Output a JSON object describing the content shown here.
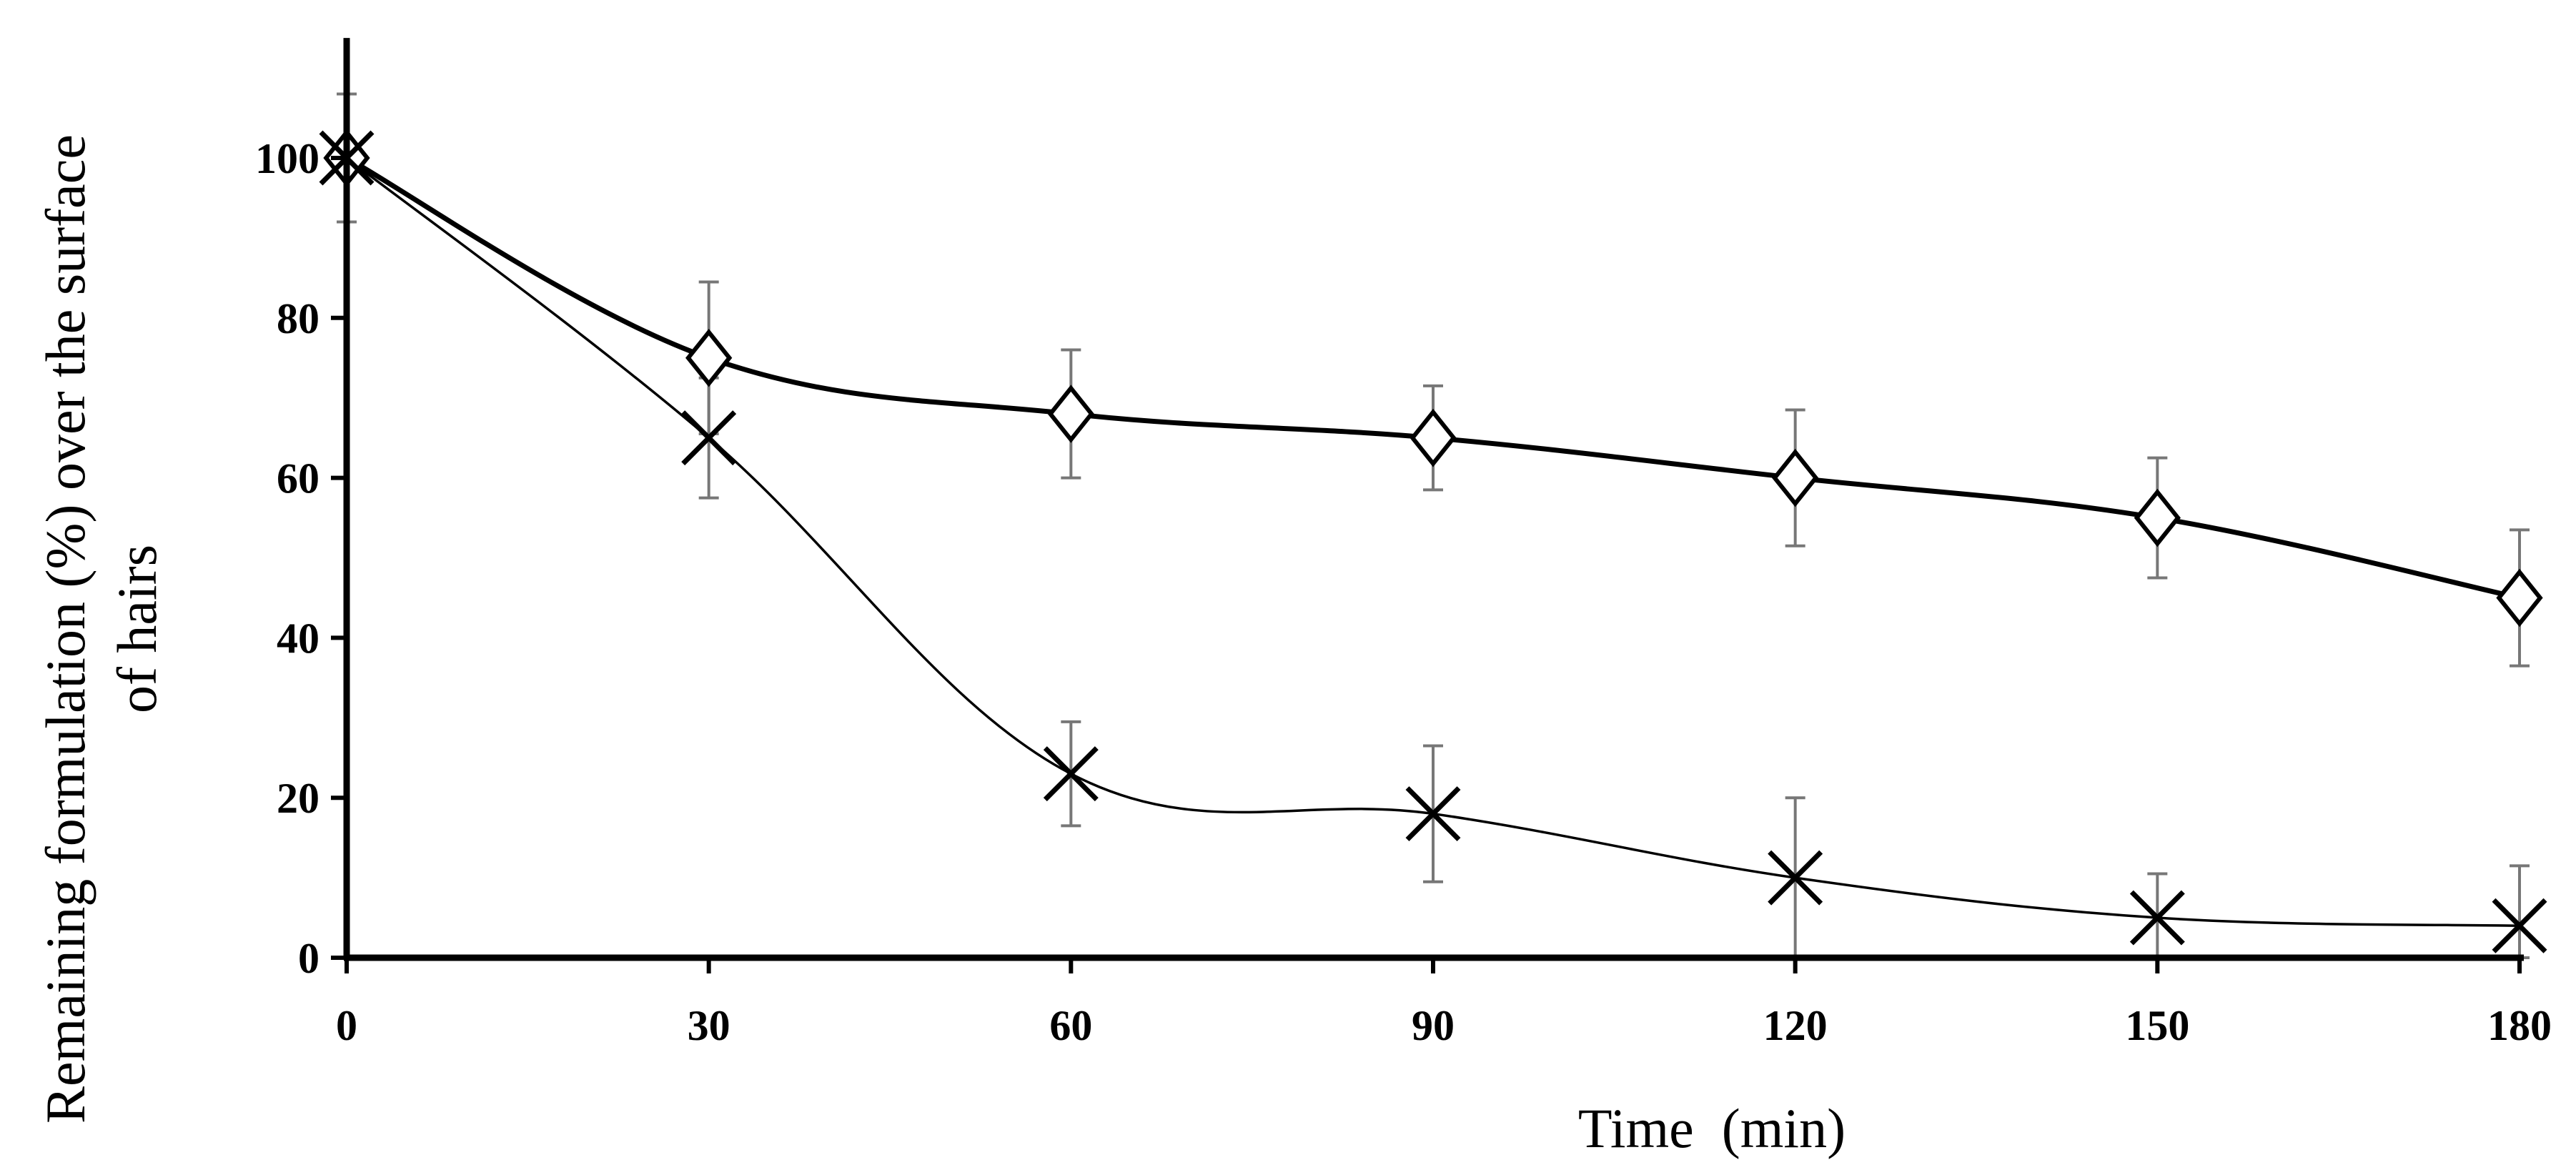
{
  "chart_data": {
    "type": "line",
    "title": "",
    "xlabel": "Time  (min)",
    "ylabel_line1": "Remaining formulation (%) over the surface",
    "ylabel_line2": "of hairs",
    "xlim": [
      0,
      180
    ],
    "ylim": [
      0,
      115
    ],
    "x_ticks": [
      0,
      30,
      60,
      90,
      120,
      150,
      180
    ],
    "y_ticks": [
      0,
      20,
      40,
      60,
      80,
      100
    ],
    "legend": "none",
    "series": [
      {
        "name": "diamond-series",
        "marker": "diamond",
        "x": [
          0,
          30,
          60,
          90,
          120,
          150,
          180
        ],
        "y": [
          100,
          75,
          68,
          65,
          60,
          55,
          45
        ],
        "error": [
          8,
          9.5,
          8,
          6.5,
          8.5,
          7.5,
          8.5
        ]
      },
      {
        "name": "cross-series",
        "marker": "cross",
        "x": [
          0,
          30,
          60,
          90,
          120,
          150,
          180
        ],
        "y": [
          100,
          65,
          23,
          18,
          10,
          5,
          4
        ],
        "error": [
          8,
          7.5,
          6.5,
          8.5,
          10,
          5.5,
          7.5
        ]
      }
    ]
  }
}
